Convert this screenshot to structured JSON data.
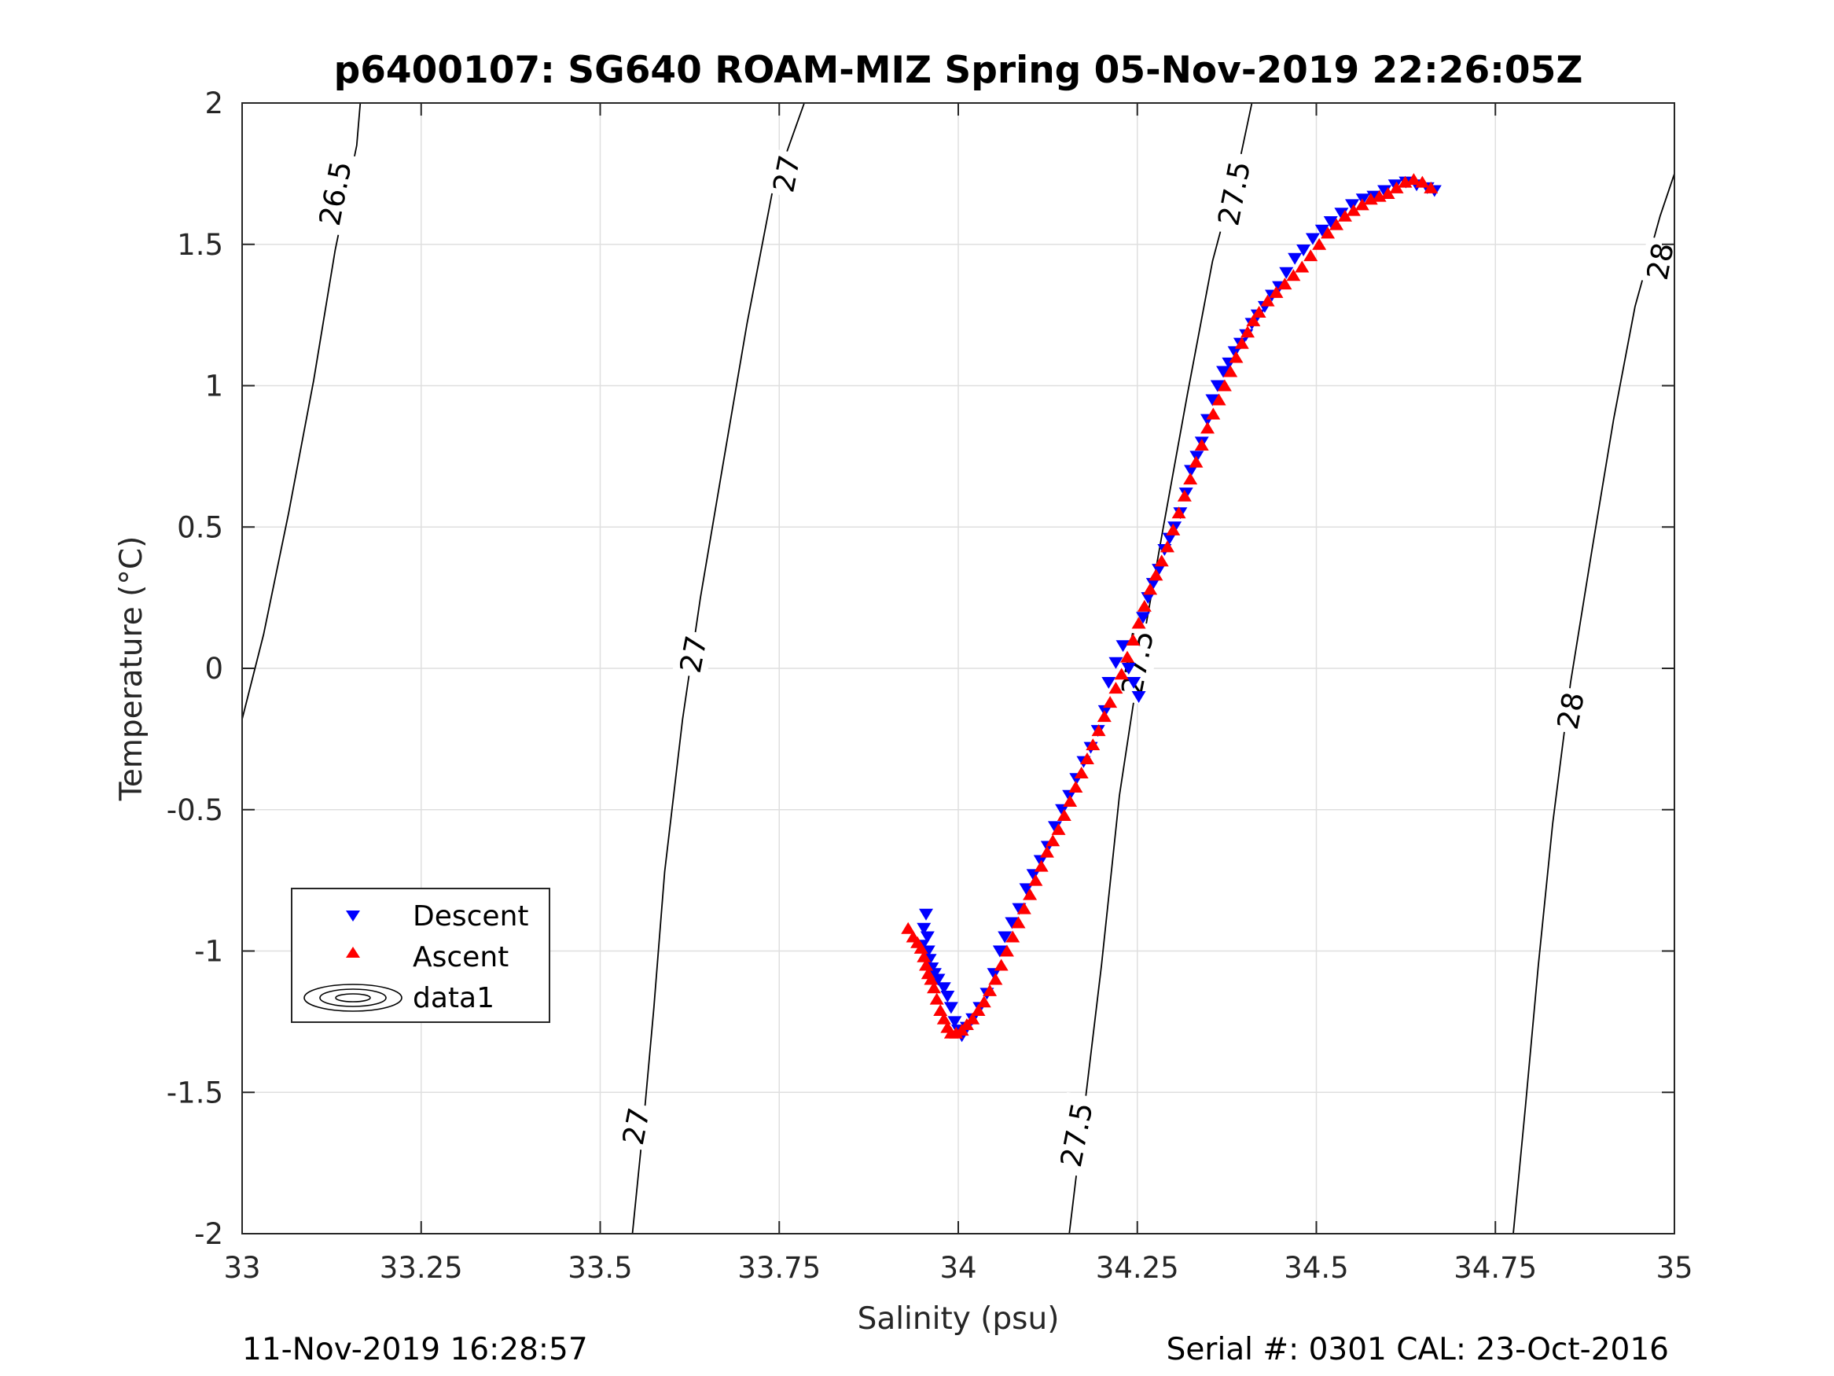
{
  "chart_data": {
    "type": "scatter",
    "title": "p6400107: SG640 ROAM-MIZ Spring 05-Nov-2019 22:26:05Z",
    "xlabel": "Salinity (psu)",
    "ylabel": "Temperature (°C)",
    "xlim": [
      33,
      35
    ],
    "ylim": [
      -2,
      2
    ],
    "xticks": [
      33,
      33.25,
      33.5,
      33.75,
      34,
      34.25,
      34.5,
      34.75,
      35
    ],
    "xtick_labels": [
      "33",
      "33.25",
      "33.5",
      "33.75",
      "34",
      "34.25",
      "34.5",
      "34.75",
      "35"
    ],
    "yticks": [
      -2,
      -1.5,
      -1,
      -0.5,
      0,
      0.5,
      1,
      1.5,
      2
    ],
    "ytick_labels": [
      "-2",
      "-1.5",
      "-1",
      "-0.5",
      "0",
      "0.5",
      "1",
      "1.5",
      "2"
    ],
    "grid": true,
    "legend": {
      "position": "left",
      "entries": [
        "Descent",
        "Ascent",
        "data1"
      ]
    },
    "colors": {
      "descent": "#0000ff",
      "ascent": "#ff0000",
      "contour": "#000000"
    },
    "series": [
      {
        "name": "Descent",
        "marker": "triangle-down",
        "color": "#0000ff",
        "x": [
          33.955,
          33.952,
          33.957,
          33.95,
          33.958,
          33.96,
          33.963,
          33.967,
          33.972,
          33.98,
          33.985,
          33.99,
          33.995,
          34.0,
          34.005,
          34.012,
          34.02,
          34.03,
          34.04,
          34.05,
          34.058,
          34.065,
          34.075,
          34.085,
          34.095,
          34.105,
          34.115,
          34.125,
          34.135,
          34.145,
          34.155,
          34.165,
          34.175,
          34.185,
          34.195,
          34.205,
          34.21,
          34.22,
          34.23,
          34.238,
          34.245,
          34.252,
          34.258,
          34.265,
          34.272,
          34.28,
          34.288,
          34.295,
          34.302,
          34.31,
          34.318,
          34.325,
          34.333,
          34.34,
          34.348,
          34.355,
          34.362,
          34.37,
          34.378,
          34.386,
          34.394,
          34.402,
          34.41,
          34.418,
          34.428,
          34.438,
          34.448,
          34.458,
          34.47,
          34.482,
          34.495,
          34.508,
          34.52,
          34.535,
          34.55,
          34.565,
          34.58,
          34.595,
          34.61,
          34.625,
          34.64,
          34.655,
          34.665
        ],
        "y": [
          -0.87,
          -0.92,
          -0.95,
          -0.98,
          -1.0,
          -1.03,
          -1.06,
          -1.08,
          -1.1,
          -1.13,
          -1.16,
          -1.2,
          -1.25,
          -1.28,
          -1.3,
          -1.27,
          -1.24,
          -1.2,
          -1.15,
          -1.08,
          -1.0,
          -0.95,
          -0.9,
          -0.85,
          -0.78,
          -0.73,
          -0.68,
          -0.63,
          -0.56,
          -0.5,
          -0.45,
          -0.39,
          -0.33,
          -0.28,
          -0.22,
          -0.15,
          -0.05,
          0.02,
          0.08,
          0.0,
          -0.05,
          -0.1,
          0.18,
          0.25,
          0.3,
          0.35,
          0.42,
          0.46,
          0.5,
          0.55,
          0.62,
          0.7,
          0.75,
          0.8,
          0.88,
          0.95,
          1.0,
          1.05,
          1.08,
          1.12,
          1.15,
          1.18,
          1.22,
          1.25,
          1.28,
          1.32,
          1.35,
          1.4,
          1.45,
          1.48,
          1.52,
          1.55,
          1.58,
          1.61,
          1.64,
          1.66,
          1.67,
          1.69,
          1.71,
          1.72,
          1.71,
          1.7,
          1.69
        ]
      },
      {
        "name": "Ascent",
        "marker": "triangle-up",
        "color": "#ff0000",
        "x": [
          33.93,
          33.937,
          33.943,
          33.948,
          33.952,
          33.955,
          33.958,
          33.962,
          33.966,
          33.97,
          33.975,
          33.98,
          33.985,
          33.99,
          33.997,
          34.005,
          34.012,
          34.02,
          34.028,
          34.036,
          34.044,
          34.052,
          34.06,
          34.068,
          34.076,
          34.084,
          34.092,
          34.1,
          34.108,
          34.116,
          34.124,
          34.132,
          34.14,
          34.148,
          34.156,
          34.164,
          34.172,
          34.18,
          34.188,
          34.196,
          34.204,
          34.212,
          34.22,
          34.228,
          34.236,
          34.244,
          34.252,
          34.26,
          34.268,
          34.276,
          34.284,
          34.292,
          34.3,
          34.308,
          34.316,
          34.324,
          34.332,
          34.34,
          34.348,
          34.356,
          34.364,
          34.372,
          34.38,
          34.388,
          34.396,
          34.404,
          34.412,
          34.42,
          34.432,
          34.444,
          34.456,
          34.468,
          34.48,
          34.492,
          34.504,
          34.516,
          34.528,
          34.54,
          34.552,
          34.564,
          34.576,
          34.588,
          34.6,
          34.612,
          34.624,
          34.636,
          34.648,
          34.66
        ],
        "y": [
          -0.92,
          -0.95,
          -0.97,
          -0.99,
          -1.02,
          -1.05,
          -1.08,
          -1.1,
          -1.13,
          -1.17,
          -1.21,
          -1.24,
          -1.27,
          -1.29,
          -1.29,
          -1.28,
          -1.26,
          -1.24,
          -1.21,
          -1.18,
          -1.14,
          -1.1,
          -1.05,
          -1.0,
          -0.95,
          -0.9,
          -0.85,
          -0.8,
          -0.75,
          -0.7,
          -0.65,
          -0.61,
          -0.57,
          -0.52,
          -0.47,
          -0.42,
          -0.37,
          -0.32,
          -0.27,
          -0.22,
          -0.17,
          -0.12,
          -0.07,
          -0.02,
          0.04,
          0.1,
          0.16,
          0.22,
          0.28,
          0.33,
          0.38,
          0.43,
          0.49,
          0.55,
          0.61,
          0.67,
          0.73,
          0.79,
          0.85,
          0.9,
          0.95,
          1.0,
          1.05,
          1.1,
          1.15,
          1.19,
          1.23,
          1.26,
          1.3,
          1.33,
          1.36,
          1.39,
          1.42,
          1.46,
          1.5,
          1.54,
          1.57,
          1.6,
          1.62,
          1.64,
          1.66,
          1.67,
          1.68,
          1.7,
          1.72,
          1.73,
          1.72,
          1.7
        ]
      }
    ],
    "isopycnals": [
      {
        "label": "26.5",
        "points": [
          [
            33.0,
            -0.18
          ],
          [
            33.03,
            0.12
          ],
          [
            33.065,
            0.55
          ],
          [
            33.1,
            1.02
          ],
          [
            33.13,
            1.48
          ],
          [
            33.16,
            1.85
          ],
          [
            33.165,
            2.0
          ]
        ]
      },
      {
        "label": "27",
        "points": [
          [
            33.545,
            -2.0
          ],
          [
            33.56,
            -1.62
          ],
          [
            33.575,
            -1.2
          ],
          [
            33.59,
            -0.72
          ],
          [
            33.615,
            -0.18
          ],
          [
            33.64,
            0.25
          ],
          [
            33.67,
            0.7
          ],
          [
            33.705,
            1.22
          ],
          [
            33.74,
            1.68
          ],
          [
            33.785,
            2.0
          ]
        ]
      },
      {
        "label": "27.5",
        "points": [
          [
            34.155,
            -2.0
          ],
          [
            34.175,
            -1.58
          ],
          [
            34.2,
            -1.05
          ],
          [
            34.225,
            -0.45
          ],
          [
            34.255,
            0.05
          ],
          [
            34.285,
            0.48
          ],
          [
            34.32,
            0.97
          ],
          [
            34.355,
            1.44
          ],
          [
            34.395,
            1.82
          ],
          [
            34.41,
            2.0
          ]
        ]
      },
      {
        "label": "28",
        "points": [
          [
            34.775,
            -2.0
          ],
          [
            34.792,
            -1.55
          ],
          [
            34.81,
            -1.05
          ],
          [
            34.83,
            -0.55
          ],
          [
            34.855,
            -0.05
          ],
          [
            34.885,
            0.42
          ],
          [
            34.915,
            0.88
          ],
          [
            34.945,
            1.28
          ],
          [
            34.98,
            1.6
          ],
          [
            35.0,
            1.75
          ]
        ]
      }
    ],
    "contour_labels": [
      {
        "text": "26.5",
        "x": 33.13,
        "y": 1.68
      },
      {
        "text": "27",
        "x": 33.76,
        "y": 1.75
      },
      {
        "text": "27",
        "x": 33.63,
        "y": 0.05
      },
      {
        "text": "27",
        "x": 33.55,
        "y": -1.62
      },
      {
        "text": "27.5",
        "x": 34.385,
        "y": 1.68
      },
      {
        "text": "27.5",
        "x": 34.25,
        "y": 0.02
      },
      {
        "text": "27.5",
        "x": 34.165,
        "y": -1.65
      },
      {
        "text": "28",
        "x": 34.98,
        "y": 1.44
      },
      {
        "text": "28",
        "x": 34.855,
        "y": -0.15
      }
    ]
  },
  "footer": {
    "timestamp": "11-Nov-2019 16:28:57",
    "serial": "Serial #: 0301  CAL: 23-Oct-2016"
  }
}
